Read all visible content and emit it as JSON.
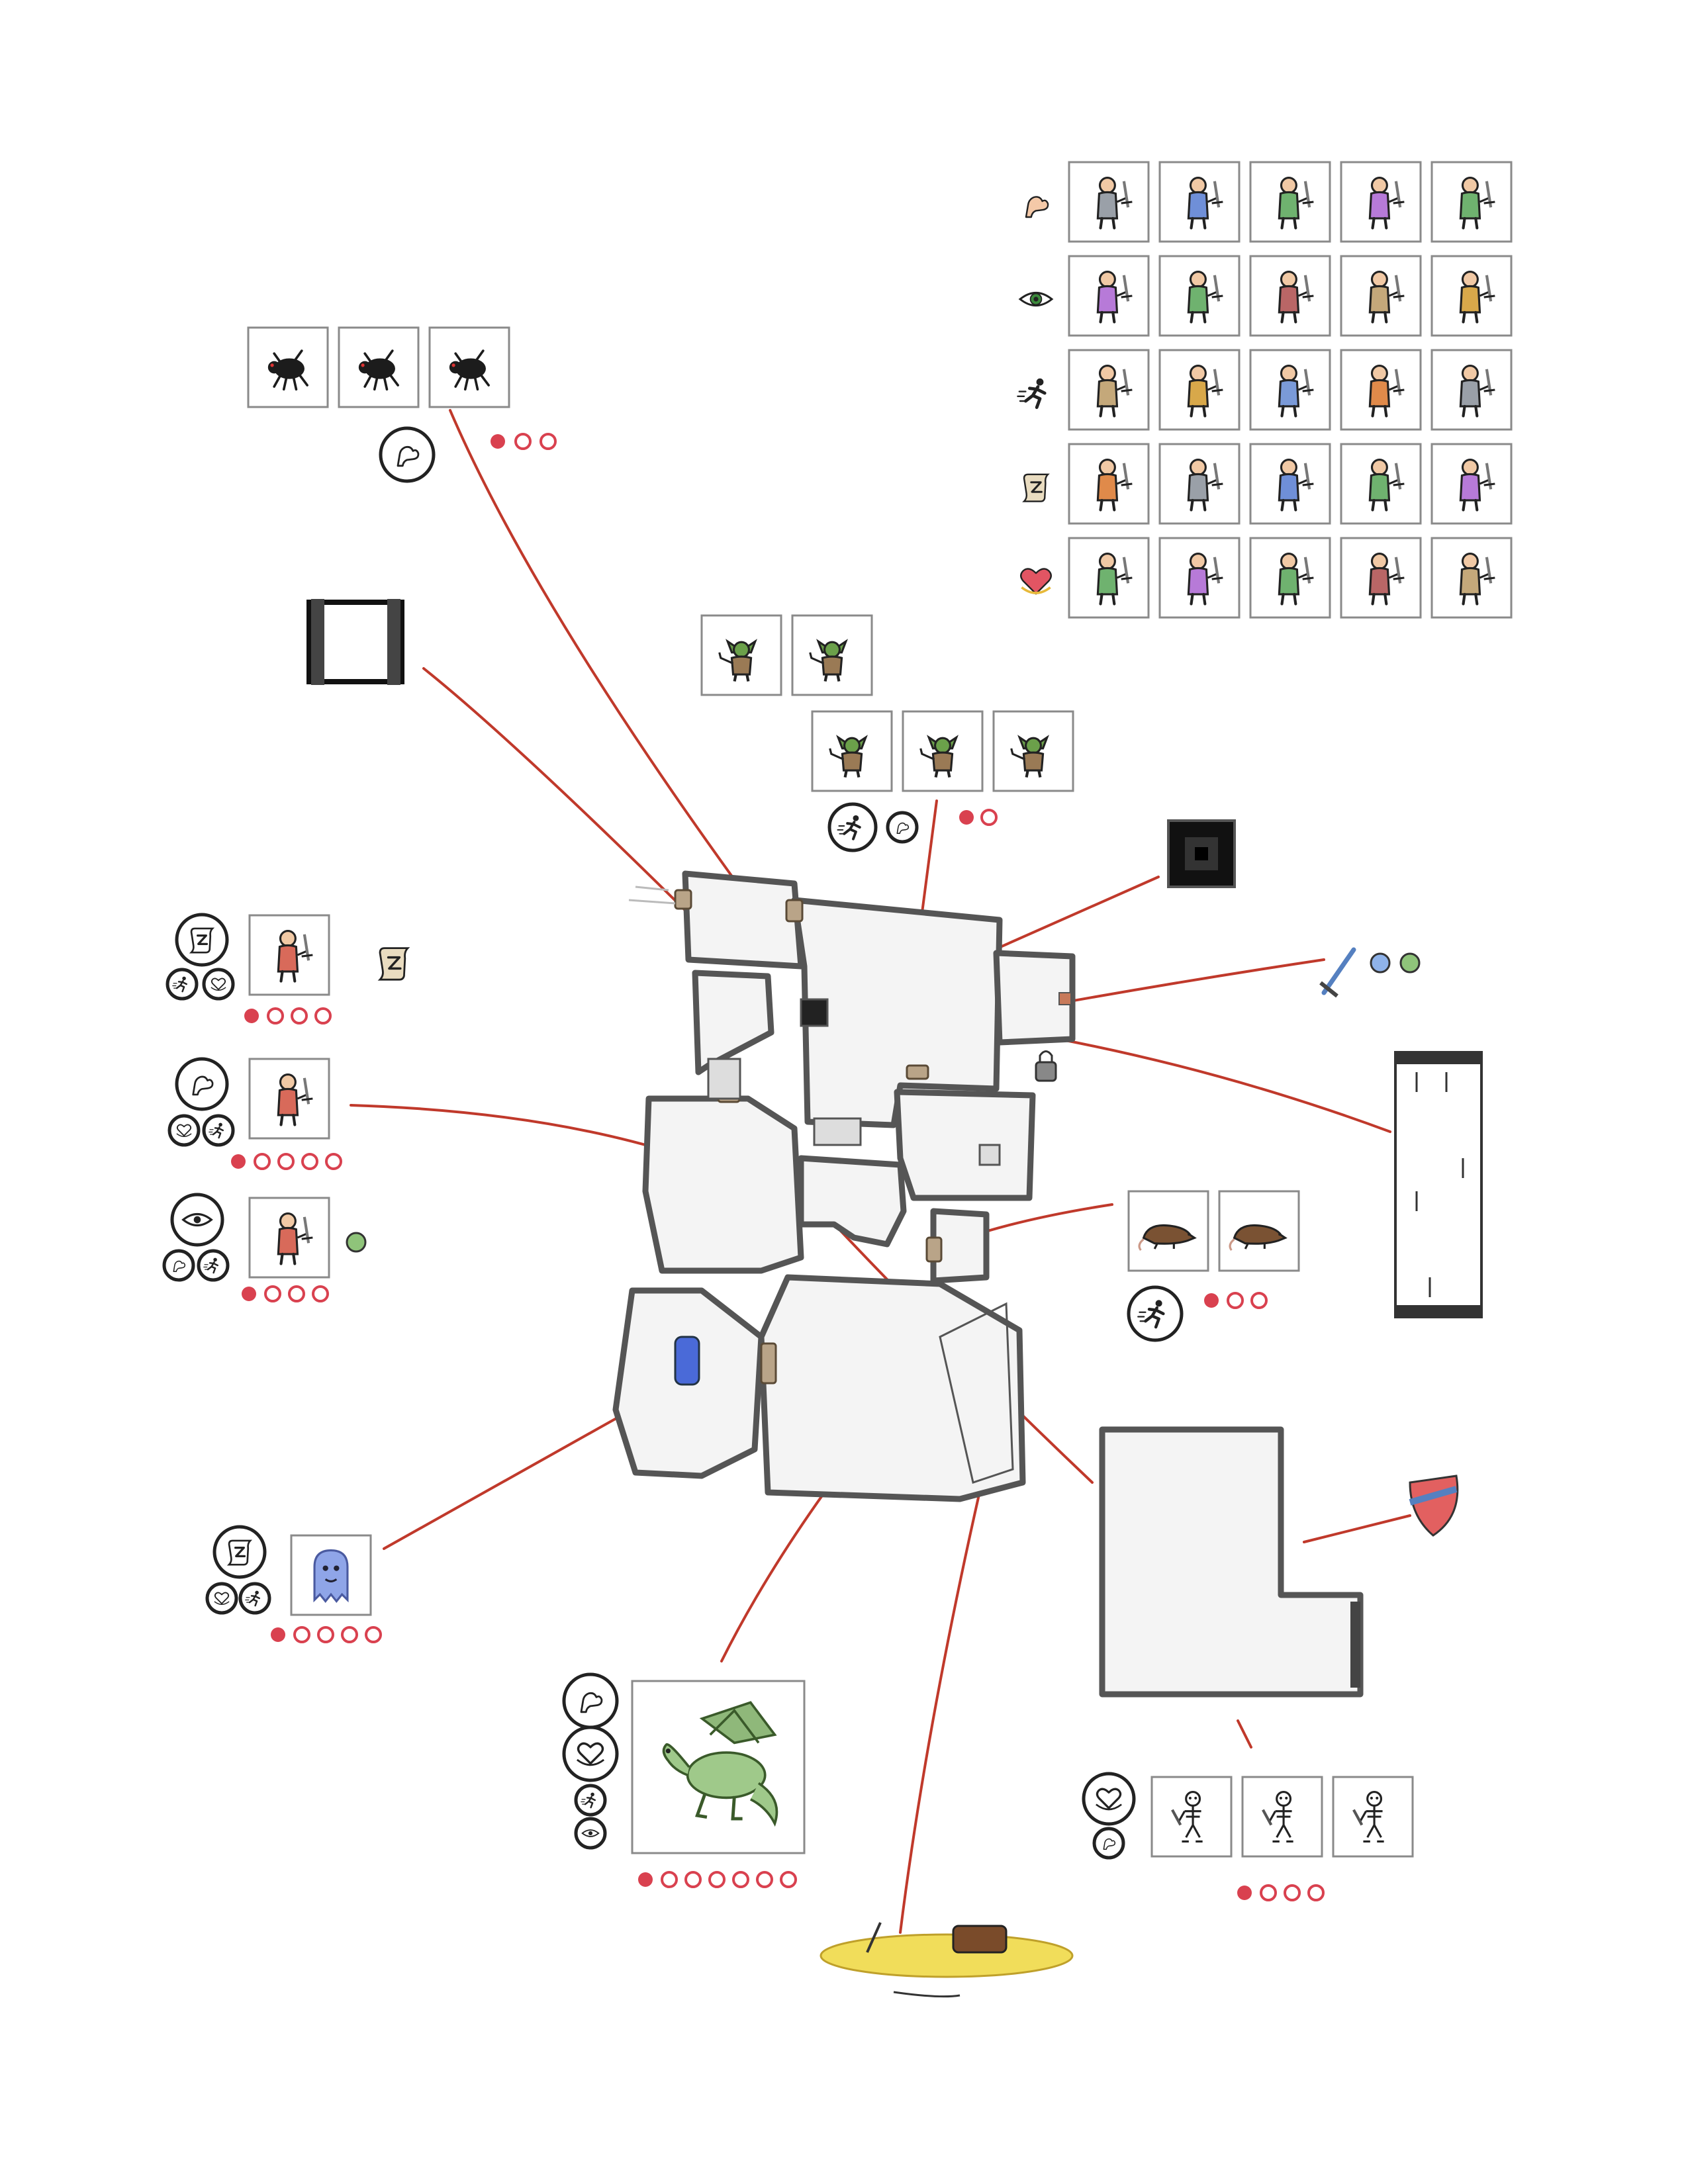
{
  "colors": {
    "track": "#d9414f",
    "connector": "#c0392b",
    "wall": "#555555",
    "floor": "#f4f4f4",
    "door": "#b9a488"
  },
  "hero_roster": {
    "rows": [
      {
        "stat_icon": "strength-arm-icon",
        "heroes": [
          "knight-hero",
          "axe-hero",
          "sword-hero",
          "axe-hero",
          "sword-hero"
        ]
      },
      {
        "stat_icon": "perception-eye-icon",
        "heroes": [
          "archer-hero",
          "archer-hero",
          "archer-hero",
          "crossbow-hero",
          "archer-hero"
        ]
      },
      {
        "stat_icon": "agility-runner-icon",
        "heroes": [
          "rogue-hero",
          "rogue-hero",
          "rogue-hero",
          "rogue-hero",
          "rogue-hero"
        ]
      },
      {
        "stat_icon": "magic-scroll-icon",
        "heroes": [
          "wizard-hero",
          "wizard-hero",
          "wizard-hero",
          "wizard-hero",
          "wizard-hero"
        ]
      },
      {
        "stat_icon": "heart-icon",
        "heroes": [
          "cleric-hero",
          "cleric-hero",
          "cleric-hero",
          "cleric-hero",
          "cleric-hero"
        ]
      }
    ]
  },
  "encounters": [
    {
      "name": "giant-spiders",
      "monsters": [
        "spider-monster",
        "spider-monster",
        "spider-monster"
      ],
      "weakness": [
        "strength-arm-icon"
      ],
      "track": {
        "filled": 1,
        "total": 3
      }
    },
    {
      "name": "goblins",
      "monsters": [
        "goblin-monster",
        "goblin-monster",
        "goblin-monster",
        "goblin-monster",
        "goblin-monster"
      ],
      "weakness": [
        "agility-runner-icon",
        "strength-arm-icon"
      ],
      "track": {
        "filled": 1,
        "total": 2
      }
    },
    {
      "name": "rats",
      "monsters": [
        "rat-monster",
        "rat-monster"
      ],
      "weakness": [
        "agility-runner-icon"
      ],
      "track": {
        "filled": 1,
        "total": 3
      }
    },
    {
      "name": "ghost",
      "monsters": [
        "ghost-monster"
      ],
      "weakness": [
        "magic-scroll-icon",
        "heart-icon",
        "agility-runner-icon"
      ],
      "track": {
        "filled": 1,
        "total": 5
      }
    },
    {
      "name": "dragon",
      "monsters": [
        "dragon-monster"
      ],
      "weakness": [
        "strength-arm-icon",
        "heart-icon",
        "agility-runner-icon",
        "perception-eye-icon"
      ],
      "track": {
        "filled": 1,
        "total": 7
      }
    },
    {
      "name": "skeletons",
      "monsters": [
        "skeleton-monster",
        "skeleton-monster",
        "skeleton-monster"
      ],
      "weakness": [
        "heart-icon",
        "strength-arm-icon"
      ],
      "track": {
        "filled": 1,
        "total": 4
      }
    }
  ],
  "companions": [
    {
      "name": "wizard-companion",
      "stats": [
        "magic-scroll-icon",
        "agility-runner-icon",
        "heart-icon"
      ],
      "item": "scroll-item-icon",
      "track": {
        "filled": 1,
        "total": 4
      }
    },
    {
      "name": "warrior-companion",
      "stats": [
        "strength-arm-icon",
        "heart-icon",
        "agility-runner-icon"
      ],
      "item": "",
      "track": {
        "filled": 1,
        "total": 5
      }
    },
    {
      "name": "ranger-companion",
      "stats": [
        "perception-eye-icon",
        "strength-arm-icon",
        "agility-runner-icon"
      ],
      "item": "potion-item-icon",
      "track": {
        "filled": 1,
        "total": 4
      }
    }
  ],
  "features": [
    "trapdoor-tile",
    "pit-trap-tile",
    "locked-door-icon",
    "sword-and-potions-loot",
    "arrow-trap-corridor",
    "shield-loot",
    "treasure-hoard",
    "magic-portal"
  ]
}
